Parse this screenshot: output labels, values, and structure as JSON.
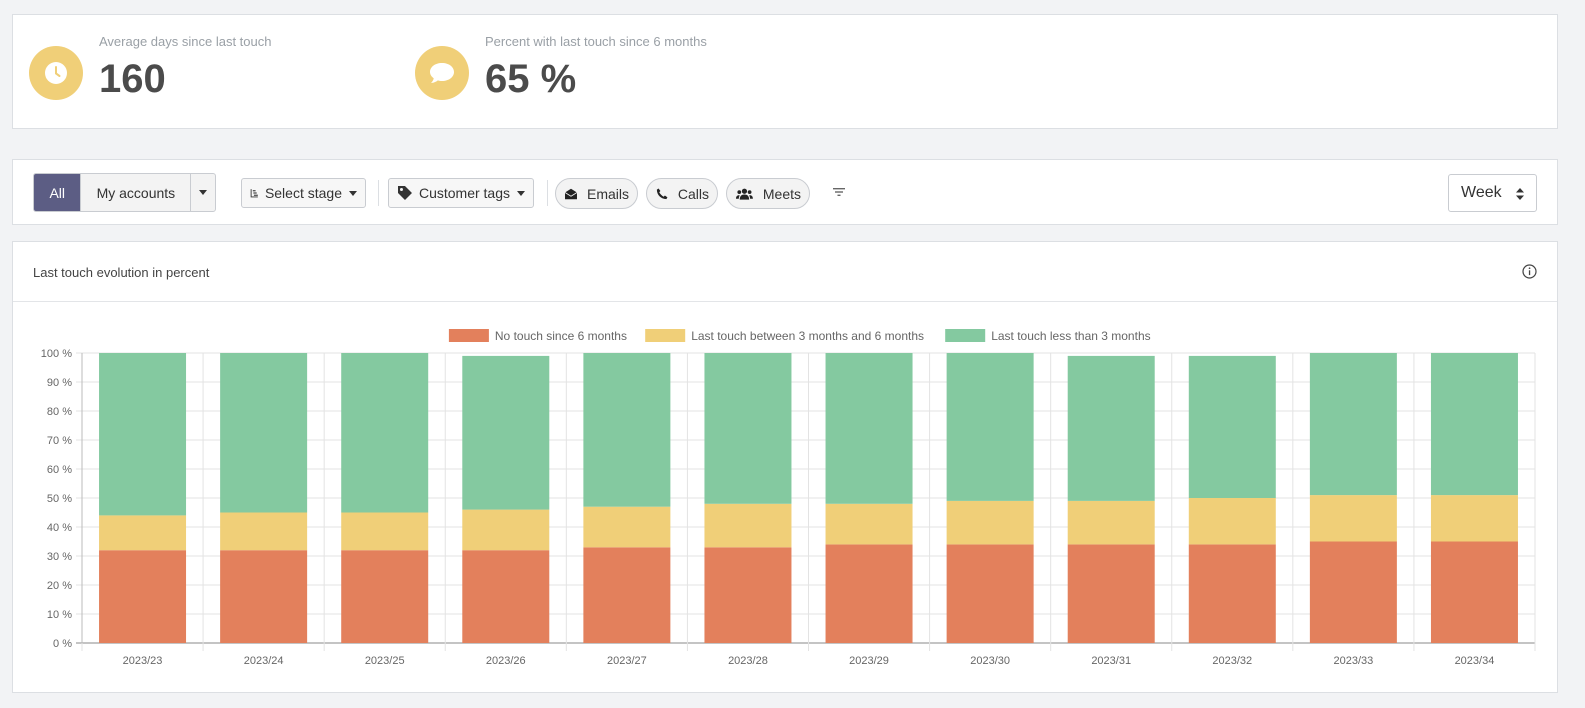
{
  "kpis": [
    {
      "label": "Average days since last touch",
      "value": "160",
      "icon": "clock-icon"
    },
    {
      "label": "Percent with last touch since 6 months",
      "value": "65 %",
      "icon": "comment-icon"
    }
  ],
  "toolbar": {
    "scope_buttons": [
      "All",
      "My accounts"
    ],
    "active_scope": "All",
    "select_stage_label": "Select stage",
    "customer_tags_label": "Customer tags",
    "filters": [
      "Emails",
      "Calls",
      "Meets"
    ],
    "period_select": "Week"
  },
  "chart_card": {
    "title": "Last touch evolution in percent"
  },
  "colors": {
    "accent": "#5c5d84",
    "kpi_circle": "#f0cf78",
    "red": "#e3805c",
    "yellow": "#f0cf78",
    "green": "#84c9a0"
  },
  "chart_data": {
    "type": "bar",
    "stacked": true,
    "categories": [
      "2023/23",
      "2023/24",
      "2023/25",
      "2023/26",
      "2023/27",
      "2023/28",
      "2023/29",
      "2023/30",
      "2023/31",
      "2023/32",
      "2023/33",
      "2023/34"
    ],
    "series": [
      {
        "name": "No touch since 6 months",
        "color": "#e3805c",
        "values": [
          32,
          32,
          32,
          32,
          33,
          33,
          34,
          34,
          34,
          34,
          35,
          35
        ]
      },
      {
        "name": "Last touch between 3 months and 6 months",
        "color": "#f0cf78",
        "values": [
          12,
          13,
          13,
          14,
          14,
          15,
          14,
          15,
          15,
          16,
          16,
          16
        ]
      },
      {
        "name": "Last touch less than 3 months",
        "color": "#84c9a0",
        "values": [
          56,
          55,
          55,
          53,
          53,
          52,
          52,
          51,
          50,
          49,
          49,
          49
        ]
      }
    ],
    "ylim": [
      0,
      100
    ],
    "yticks": [
      "0 %",
      "10 %",
      "20 %",
      "30 %",
      "40 %",
      "50 %",
      "60 %",
      "70 %",
      "80 %",
      "90 %",
      "100 %"
    ],
    "legend_position": "top",
    "grid": true
  }
}
